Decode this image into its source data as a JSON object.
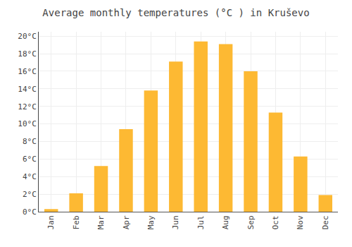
{
  "chart_data": {
    "type": "bar",
    "title": "Average monthly temperatures (°C ) in Kruševo",
    "categories": [
      "Jan",
      "Feb",
      "Mar",
      "Apr",
      "May",
      "Jun",
      "Jul",
      "Aug",
      "Sep",
      "Oct",
      "Nov",
      "Dec"
    ],
    "values": [
      0.3,
      2.1,
      5.2,
      9.4,
      13.8,
      17.1,
      19.4,
      19.1,
      16.0,
      11.3,
      6.3,
      1.9
    ],
    "color": "#FDB933",
    "ylim": [
      0,
      20.5
    ],
    "yticks": [
      {
        "value": 0,
        "label": "0°C"
      },
      {
        "value": 2,
        "label": "2°C"
      },
      {
        "value": 4,
        "label": "4°C"
      },
      {
        "value": 6,
        "label": "6°C"
      },
      {
        "value": 8,
        "label": "8°C"
      },
      {
        "value": 10,
        "label": "10°C"
      },
      {
        "value": 12,
        "label": "12°C"
      },
      {
        "value": 14,
        "label": "14°C"
      },
      {
        "value": 16,
        "label": "16°C"
      },
      {
        "value": 18,
        "label": "18°C"
      },
      {
        "value": 20,
        "label": "20°C"
      }
    ],
    "grid": true
  }
}
